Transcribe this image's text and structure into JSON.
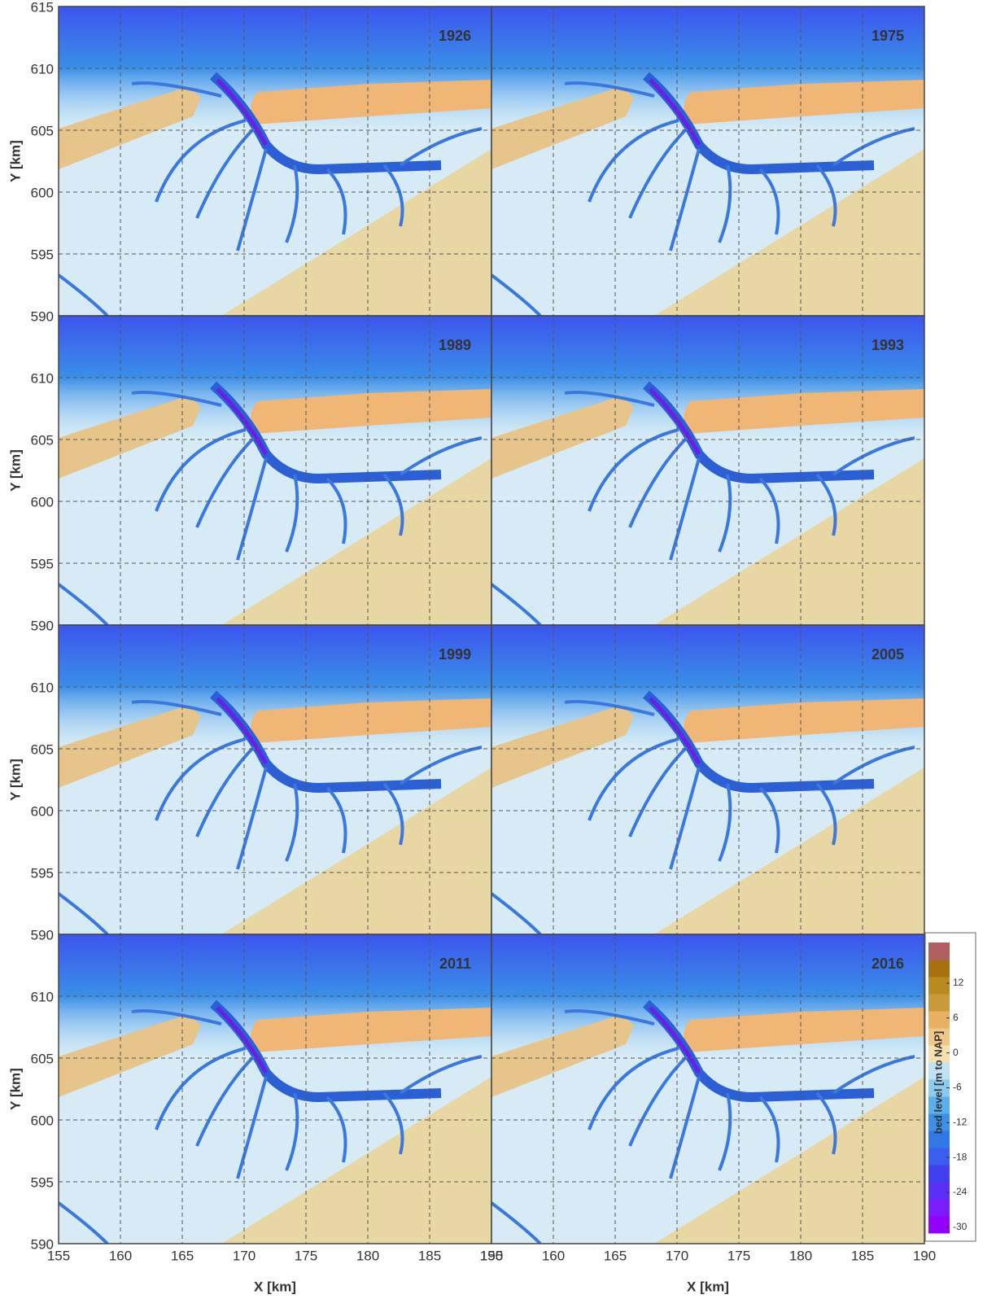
{
  "x_axis": {
    "label": "X [km]",
    "lim": [
      155,
      190
    ],
    "ticks": [
      155,
      160,
      165,
      170,
      175,
      180,
      185,
      190
    ]
  },
  "y_axis": {
    "label": "Y [km]",
    "lim": [
      590,
      615
    ],
    "ticks": [
      590,
      595,
      600,
      605,
      610,
      615
    ]
  },
  "panels": [
    {
      "year": "1926"
    },
    {
      "year": "1975"
    },
    {
      "year": "1989"
    },
    {
      "year": "1993"
    },
    {
      "year": "1999"
    },
    {
      "year": "2005"
    },
    {
      "year": "2011"
    },
    {
      "year": "2016"
    }
  ],
  "colorbar": {
    "label": "bed level [m to NAP]",
    "lim": [
      -31,
      19
    ],
    "ticks": [
      -30,
      -24,
      -18,
      -12,
      -6,
      0,
      6,
      12
    ],
    "colors": [
      "#9400ff",
      "#7a1cff",
      "#5a30f5",
      "#4040f0",
      "#3a5ff0",
      "#3078ea",
      "#3c90e8",
      "#5ab0ec",
      "#8ccaf0",
      "#c0e2f4",
      "#f5e0b0",
      "#f0c888",
      "#e8b060",
      "#c89a3a",
      "#b88a20",
      "#a87010",
      "#b06060"
    ]
  }
}
